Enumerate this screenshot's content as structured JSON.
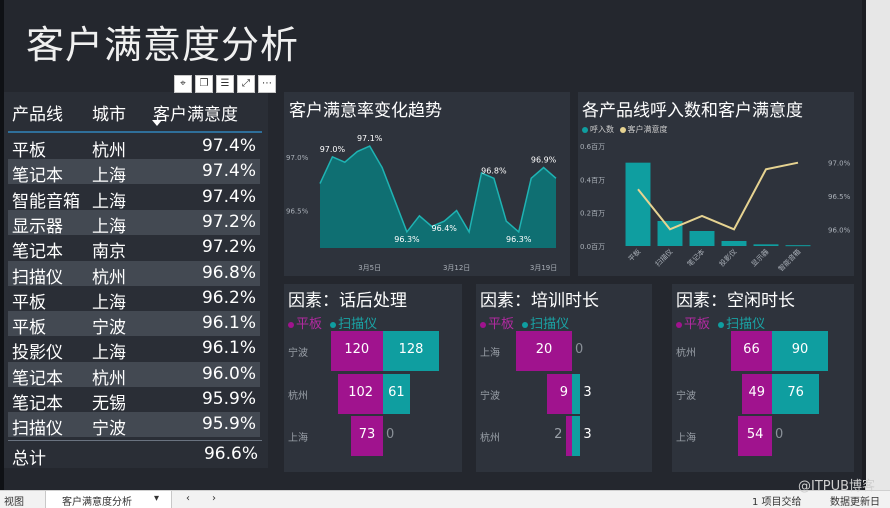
{
  "title": "客户满意度分析",
  "toolbar_icons": [
    "pin-icon",
    "copy-icon",
    "filter-icon",
    "focus-icon",
    "more-icon"
  ],
  "table": {
    "headers": [
      "产品线",
      "城市",
      "客户满意度"
    ],
    "rows": [
      [
        "平板",
        "杭州",
        "97.4%"
      ],
      [
        "笔记本",
        "上海",
        "97.4%"
      ],
      [
        "智能音箱",
        "上海",
        "97.4%"
      ],
      [
        "显示器",
        "上海",
        "97.2%"
      ],
      [
        "笔记本",
        "南京",
        "97.2%"
      ],
      [
        "扫描仪",
        "杭州",
        "96.8%"
      ],
      [
        "平板",
        "上海",
        "96.2%"
      ],
      [
        "平板",
        "宁波",
        "96.1%"
      ],
      [
        "投影仪",
        "上海",
        "96.1%"
      ],
      [
        "笔记本",
        "杭州",
        "96.0%"
      ],
      [
        "笔记本",
        "无锡",
        "95.9%"
      ],
      [
        "扫描仪",
        "宁波",
        "95.9%"
      ]
    ],
    "total_label": "总计",
    "total_value": "96.6%"
  },
  "trend": {
    "title": "客户满意率变化趋势",
    "yticks": [
      "97.0%",
      "96.5%"
    ],
    "xticks": [
      "3月5日",
      "3月12日",
      "3月19日"
    ]
  },
  "combo": {
    "title": "各产品线呼入数和客户满意度",
    "legend": [
      "呼入数",
      "客户满意度"
    ],
    "left_ticks": [
      "0.6百万",
      "0.4百万",
      "0.2百万",
      "0.0百万"
    ],
    "right_ticks": [
      "97.0%",
      "96.5%",
      "96.0%"
    ],
    "categories": [
      "平板",
      "扫描仪",
      "笔记本",
      "投影仪",
      "显示器",
      "智能音箱"
    ]
  },
  "factors": [
    {
      "title": "因素：话后处理",
      "legend": [
        "平板",
        "扫描仪"
      ],
      "cities": [
        "宁波",
        "杭州",
        "上海"
      ],
      "left": [
        "120",
        "102",
        "73"
      ],
      "right": [
        "128",
        "61",
        "0"
      ]
    },
    {
      "title": "因素：培训时长",
      "legend": [
        "平板",
        "扫描仪"
      ],
      "cities": [
        "上海",
        "宁波",
        "杭州"
      ],
      "left": [
        "20",
        "9",
        "2"
      ],
      "right": [
        "0",
        "3",
        "3"
      ]
    },
    {
      "title": "因素：空闲时长",
      "legend": [
        "平板",
        "扫描仪"
      ],
      "cities": [
        "杭州",
        "宁波",
        "上海"
      ],
      "left": [
        "66",
        "49",
        "54"
      ],
      "right": [
        "90",
        "76",
        "0"
      ]
    }
  ],
  "chart_data": [
    {
      "type": "area",
      "title": "客户满意率变化趋势",
      "x": [
        "3月1日",
        "3月2日",
        "3月3日",
        "3月4日",
        "3月5日",
        "3月6日",
        "3月7日",
        "3月8日",
        "3月9日",
        "3月10日",
        "3月11日",
        "3月12日",
        "3月13日",
        "3月14日",
        "3月15日",
        "3月16日",
        "3月17日",
        "3月18日",
        "3月19日",
        "3月20日"
      ],
      "y": [
        96.75,
        97.0,
        96.95,
        97.05,
        97.1,
        96.9,
        96.6,
        96.3,
        96.45,
        96.35,
        96.4,
        96.5,
        96.3,
        96.85,
        96.8,
        96.4,
        96.3,
        96.8,
        96.9,
        96.8
      ],
      "ylim": [
        96.15,
        97.25
      ],
      "labels": [
        {
          "index": 1,
          "text": "97.0%"
        },
        {
          "index": 4,
          "text": "97.1%"
        },
        {
          "index": 7,
          "text": "96.3%"
        },
        {
          "index": 10,
          "text": "96.4%"
        },
        {
          "index": 14,
          "text": "96.8%"
        },
        {
          "index": 16,
          "text": "96.3%"
        },
        {
          "index": 18,
          "text": "96.9%"
        }
      ],
      "color": "#19a0a0"
    },
    {
      "type": "bar",
      "title": "各产品线呼入数和客户满意度",
      "categories": [
        "平板",
        "扫描仪",
        "笔记本",
        "投影仪",
        "显示器",
        "智能音箱"
      ],
      "series": [
        {
          "name": "呼入数",
          "values": [
            0.5,
            0.15,
            0.09,
            0.03,
            0.01,
            0.005
          ],
          "unit": "百万"
        },
        {
          "name": "客户满意度",
          "values": [
            96.6,
            96.0,
            96.2,
            96.0,
            96.9,
            97.0
          ],
          "unit": "%"
        }
      ],
      "ylim_left": [
        0,
        0.6
      ],
      "ylim_right": [
        95.75,
        97.25
      ]
    },
    {
      "type": "bar",
      "title": "因素：话后处理",
      "categories": [
        "宁波",
        "杭州",
        "上海"
      ],
      "series": [
        {
          "name": "平板",
          "values": [
            120,
            102,
            73
          ]
        },
        {
          "name": "扫描仪",
          "values": [
            128,
            61,
            0
          ]
        }
      ]
    },
    {
      "type": "bar",
      "title": "因素：培训时长",
      "categories": [
        "上海",
        "宁波",
        "杭州"
      ],
      "series": [
        {
          "name": "平板",
          "values": [
            20,
            9,
            2
          ]
        },
        {
          "name": "扫描仪",
          "values": [
            0,
            3,
            3
          ]
        }
      ]
    },
    {
      "type": "bar",
      "title": "因素：空闲时长",
      "categories": [
        "杭州",
        "宁波",
        "上海"
      ],
      "series": [
        {
          "name": "平板",
          "values": [
            66,
            49,
            54
          ]
        },
        {
          "name": "扫描仪",
          "values": [
            90,
            76,
            0
          ]
        }
      ]
    }
  ],
  "colors": {
    "teal": "#0f9ea0",
    "magenta": "#a0138e",
    "line_gold": "#e6d391"
  },
  "status": {
    "left": "视图",
    "tab": "客户满意度分析",
    "right1": "1 项目交给",
    "right2": "数据更新日",
    "watermark": "@ITPUB博客"
  }
}
